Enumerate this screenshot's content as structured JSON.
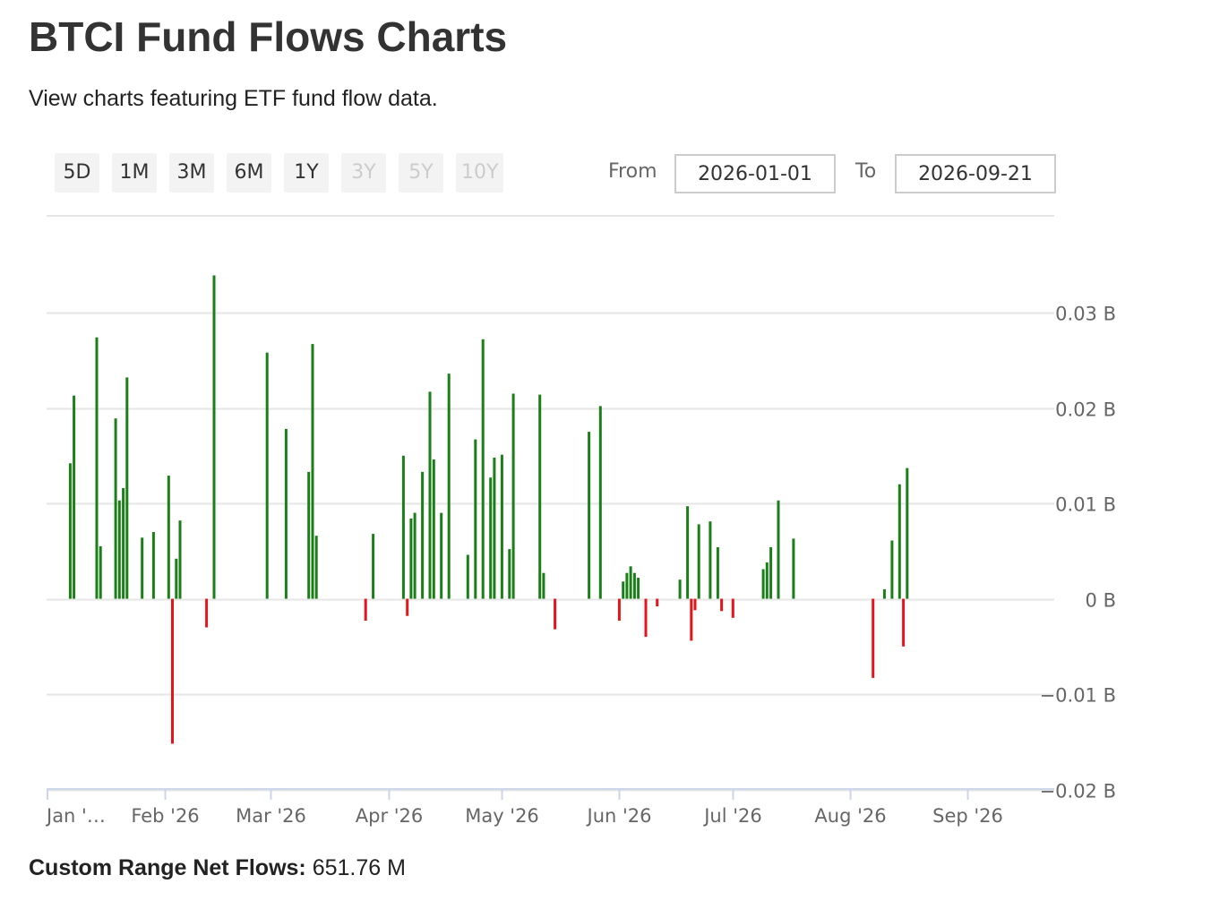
{
  "header": {
    "title": "BTCI Fund Flows Charts",
    "subtitle": "View charts featuring ETF fund flow data."
  },
  "range_selector": {
    "buttons": [
      {
        "label": "5D",
        "enabled": true
      },
      {
        "label": "1M",
        "enabled": true
      },
      {
        "label": "3M",
        "enabled": true
      },
      {
        "label": "6M",
        "enabled": true
      },
      {
        "label": "1Y",
        "enabled": true
      },
      {
        "label": "3Y",
        "enabled": false
      },
      {
        "label": "5Y",
        "enabled": false
      },
      {
        "label": "10Y",
        "enabled": false
      }
    ],
    "from_label": "From",
    "from_value": "2026-01-01",
    "to_label": "To",
    "to_value": "2026-09-21"
  },
  "colors": {
    "positive": "#1a7f17",
    "negative": "#e8141c",
    "grid": "#e6e6e6",
    "axis": "#ccd6eb"
  },
  "chart_data": {
    "type": "bar",
    "unit": "B",
    "x_type": "date",
    "ylim": [
      -0.02,
      0.03
    ],
    "y_ticks": [
      -0.02,
      -0.01,
      0,
      0.01,
      0.02,
      0.03
    ],
    "y_tick_labels": [
      "−0.02 B",
      "−0.01 B",
      "0 B",
      "0.01 B",
      "0.02 B",
      "0.03 B"
    ],
    "x_ticks": [
      "2026-01-01",
      "2026-02-01",
      "2026-03-01",
      "2026-04-01",
      "2026-05-01",
      "2026-06-01",
      "2026-07-01",
      "2026-08-01",
      "2026-09-01"
    ],
    "x_tick_labels": [
      "Jan '…",
      "Feb '26",
      "Mar '26",
      "Apr '26",
      "May '26",
      "Jun '26",
      "Jul '26",
      "Aug '26",
      "Sep '26"
    ],
    "grid": true,
    "legend": false,
    "points": [
      [
        "2026-01-07",
        0.0142
      ],
      [
        "2026-01-08",
        0.0213
      ],
      [
        "2026-01-14",
        0.0274
      ],
      [
        "2026-01-15",
        0.0055
      ],
      [
        "2026-01-19",
        0.0189
      ],
      [
        "2026-01-20",
        0.0103
      ],
      [
        "2026-01-21",
        0.0116
      ],
      [
        "2026-01-22",
        0.0232
      ],
      [
        "2026-01-26",
        0.0064
      ],
      [
        "2026-01-29",
        0.007
      ],
      [
        "2026-02-02",
        0.0129
      ],
      [
        "2026-02-03",
        -0.0152
      ],
      [
        "2026-02-04",
        0.0042
      ],
      [
        "2026-02-05",
        0.0082
      ],
      [
        "2026-02-12",
        -0.003
      ],
      [
        "2026-02-14",
        0.0339
      ],
      [
        "2026-02-28",
        0.0258
      ],
      [
        "2026-03-05",
        0.0178
      ],
      [
        "2026-03-11",
        0.0133
      ],
      [
        "2026-03-12",
        0.0267
      ],
      [
        "2026-03-13",
        0.0066
      ],
      [
        "2026-03-26",
        -0.0023
      ],
      [
        "2026-03-28",
        0.0068
      ],
      [
        "2026-04-05",
        0.015
      ],
      [
        "2026-04-06",
        -0.0018
      ],
      [
        "2026-04-07",
        0.0084
      ],
      [
        "2026-04-08",
        0.009
      ],
      [
        "2026-04-10",
        0.0133
      ],
      [
        "2026-04-12",
        0.0217
      ],
      [
        "2026-04-13",
        0.0146
      ],
      [
        "2026-04-15",
        0.009
      ],
      [
        "2026-04-17",
        0.0236
      ],
      [
        "2026-04-22",
        0.0046
      ],
      [
        "2026-04-24",
        0.0167
      ],
      [
        "2026-04-26",
        0.0272
      ],
      [
        "2026-04-28",
        0.0127
      ],
      [
        "2026-04-29",
        0.0148
      ],
      [
        "2026-05-01",
        0.0151
      ],
      [
        "2026-05-03",
        0.0052
      ],
      [
        "2026-05-04",
        0.0215
      ],
      [
        "2026-05-11",
        0.0214
      ],
      [
        "2026-05-12",
        0.0027
      ],
      [
        "2026-05-15",
        -0.0032
      ],
      [
        "2026-05-24",
        0.0175
      ],
      [
        "2026-05-27",
        0.0202
      ],
      [
        "2026-06-01",
        -0.0023
      ],
      [
        "2026-06-02",
        0.0018
      ],
      [
        "2026-06-03",
        0.0027
      ],
      [
        "2026-06-04",
        0.0034
      ],
      [
        "2026-06-05",
        0.0027
      ],
      [
        "2026-06-06",
        0.0022
      ],
      [
        "2026-06-08",
        -0.004
      ],
      [
        "2026-06-11",
        -0.0008
      ],
      [
        "2026-06-17",
        0.002
      ],
      [
        "2026-06-19",
        0.0097
      ],
      [
        "2026-06-20",
        -0.0044
      ],
      [
        "2026-06-21",
        -0.0012
      ],
      [
        "2026-06-22",
        0.0078
      ],
      [
        "2026-06-25",
        0.0081
      ],
      [
        "2026-06-27",
        0.0054
      ],
      [
        "2026-06-28",
        -0.0013
      ],
      [
        "2026-07-01",
        -0.002
      ],
      [
        "2026-07-09",
        0.0031
      ],
      [
        "2026-07-10",
        0.0038
      ],
      [
        "2026-07-11",
        0.0054
      ],
      [
        "2026-07-13",
        0.0103
      ],
      [
        "2026-07-17",
        0.0063
      ],
      [
        "2026-08-07",
        -0.0083
      ],
      [
        "2026-08-10",
        0.001
      ],
      [
        "2026-08-12",
        0.0061
      ],
      [
        "2026-08-14",
        0.012
      ],
      [
        "2026-08-15",
        -0.005
      ],
      [
        "2026-08-16",
        0.0137
      ]
    ]
  },
  "summary": {
    "label": "Custom Range Net Flows:",
    "value": "651.76 M"
  }
}
